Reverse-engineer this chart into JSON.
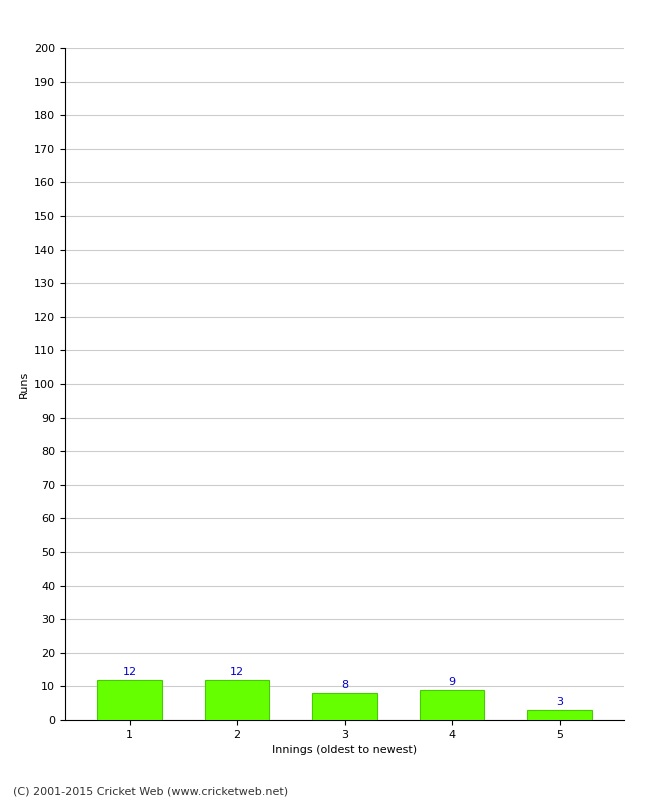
{
  "categories": [
    1,
    2,
    3,
    4,
    5
  ],
  "values": [
    12,
    12,
    8,
    9,
    3
  ],
  "bar_color": "#66ff00",
  "bar_edge_color": "#44cc00",
  "label_color": "#0000cc",
  "ylabel": "Runs",
  "xlabel": "Innings (oldest to newest)",
  "ylim": [
    0,
    200
  ],
  "yticks": [
    0,
    10,
    20,
    30,
    40,
    50,
    60,
    70,
    80,
    90,
    100,
    110,
    120,
    130,
    140,
    150,
    160,
    170,
    180,
    190,
    200
  ],
  "grid_color": "#cccccc",
  "background_color": "#ffffff",
  "footer": "(C) 2001-2015 Cricket Web (www.cricketweb.net)",
  "label_fontsize": 8,
  "axis_fontsize": 8,
  "ylabel_fontsize": 8,
  "xlabel_fontsize": 8,
  "footer_fontsize": 8,
  "bar_width": 0.6
}
